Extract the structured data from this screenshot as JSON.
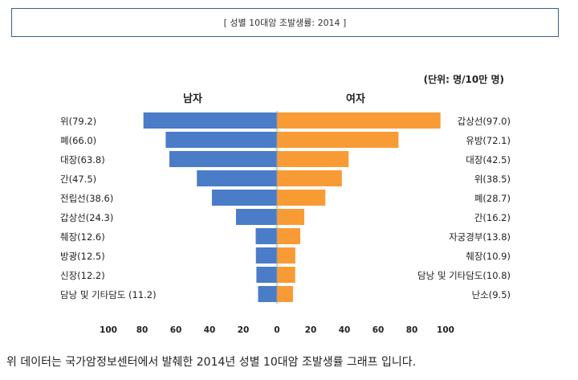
{
  "page": {
    "title_box": "[ 성별 10대암 조발생률: 2014 ]",
    "caption": "위 데이터는 국가암정보센터에서 발췌한 2014년 성별 10대암 조발생률 그래프 입니다."
  },
  "chart_data": {
    "type": "bar",
    "orientation": "horizontal-butterfly",
    "unit_label": "(단위: 명/10만 명)",
    "xlim": [
      0,
      100
    ],
    "x_ticks": [
      "100",
      "80",
      "60",
      "40",
      "20",
      "0",
      "20",
      "40",
      "60",
      "80",
      "100"
    ],
    "colors": {
      "male": "#4a7cc7",
      "female": "#f99b35"
    },
    "series": [
      {
        "name": "남자",
        "labels": [
          "위(79.2)",
          "폐(66.0)",
          "대장(63.8)",
          "간(47.5)",
          "전립선(38.6)",
          "갑상선(24.3)",
          "췌장(12.6)",
          "방광(12.5)",
          "신장(12.2)",
          "담낭 및 기타담도 (11.2)"
        ],
        "values": [
          79.2,
          66.0,
          63.8,
          47.5,
          38.6,
          24.3,
          12.6,
          12.5,
          12.2,
          11.2
        ]
      },
      {
        "name": "여자",
        "labels": [
          "갑상선(97.0)",
          "유방(72.1)",
          "대장(42.5)",
          "위(38.5)",
          "폐(28.7)",
          "간(16.2)",
          "자궁경부(13.8)",
          "췌장(10.9)",
          "담낭 및 기타담도(10.8)",
          "난소(9.5)"
        ],
        "values": [
          97.0,
          72.1,
          42.5,
          38.5,
          28.7,
          16.2,
          13.8,
          10.9,
          10.8,
          9.5
        ]
      }
    ]
  }
}
